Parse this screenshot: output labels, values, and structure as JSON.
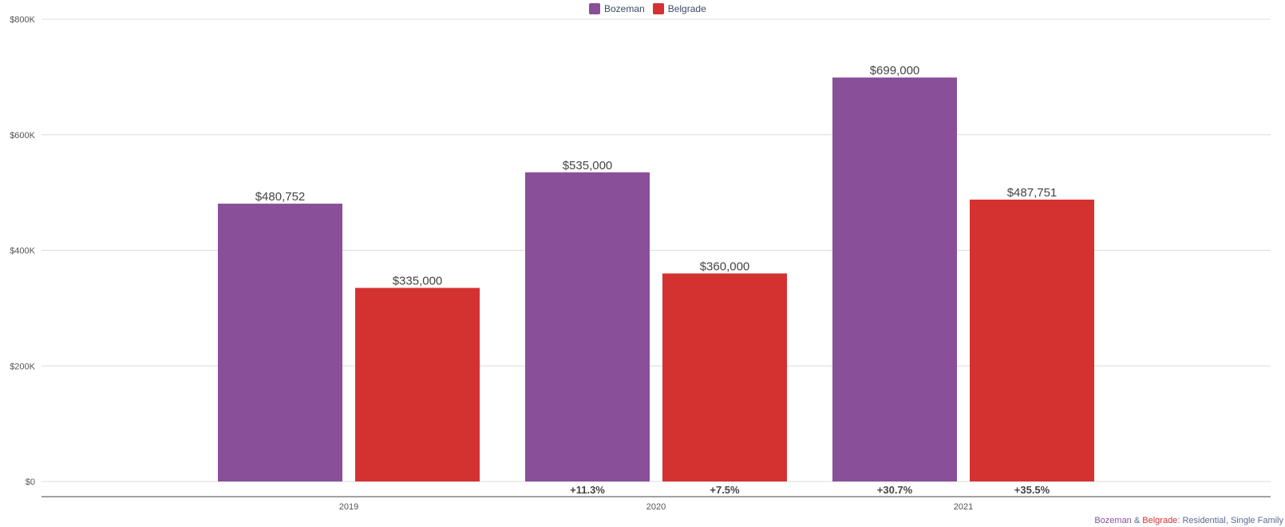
{
  "chart_data": {
    "type": "bar",
    "categories": [
      "2019",
      "2020",
      "2021"
    ],
    "series": [
      {
        "name": "Bozeman",
        "color": "#8a4f99",
        "values": [
          480752,
          535000,
          699000
        ],
        "labels": [
          "$480,752",
          "$535,000",
          "$699,000"
        ],
        "changes": [
          "",
          "+11.3%",
          "+30.7%"
        ]
      },
      {
        "name": "Belgrade",
        "color": "#d43131",
        "values": [
          335000,
          360000,
          487751
        ],
        "labels": [
          "$335,000",
          "$360,000",
          "$487,751"
        ],
        "changes": [
          "",
          "+7.5%",
          "+35.5%"
        ]
      }
    ],
    "ylim": [
      0,
      800000
    ],
    "yticks": [
      {
        "value": 0,
        "label": "$0"
      },
      {
        "value": 200000,
        "label": "$200K"
      },
      {
        "value": 400000,
        "label": "$400K"
      },
      {
        "value": 600000,
        "label": "$600K"
      },
      {
        "value": 800000,
        "label": "$800K"
      }
    ],
    "grid": true,
    "legend_position": "top-center"
  },
  "footnote": {
    "city1": "Bozeman",
    "amp": " & ",
    "city2": "Belgrade",
    "colon": ": ",
    "type": "Residential, Single Family"
  },
  "colors": {
    "city1": "#8a4f99",
    "city2": "#d43131",
    "footnote_text": "#5a6a90"
  }
}
